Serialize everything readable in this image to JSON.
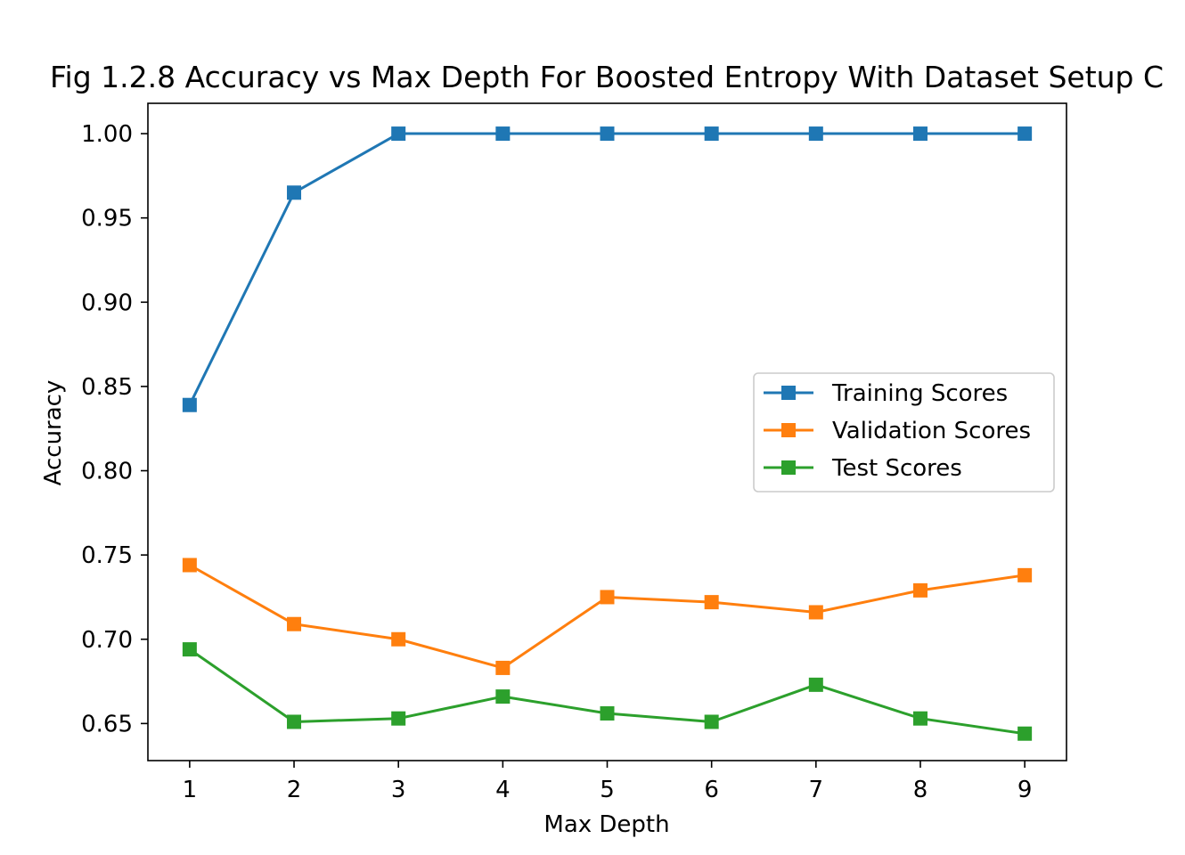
{
  "chart_data": {
    "type": "line",
    "title": "Fig 1.2.8 Accuracy vs Max Depth For Boosted Entropy With Dataset Setup C",
    "xlabel": "Max Depth",
    "ylabel": "Accuracy",
    "x": [
      1,
      2,
      3,
      4,
      5,
      6,
      7,
      8,
      9
    ],
    "xticks": [
      "1",
      "2",
      "3",
      "4",
      "5",
      "6",
      "7",
      "8",
      "9"
    ],
    "yticks": [
      "0.65",
      "0.70",
      "0.75",
      "0.80",
      "0.85",
      "0.90",
      "0.95",
      "1.00"
    ],
    "xlim": [
      0.6,
      9.4
    ],
    "ylim": [
      0.628,
      1.018
    ],
    "grid": false,
    "legend_position": "center-right",
    "marker": "square",
    "series": [
      {
        "name": "Training Scores",
        "color": "#1f77b4",
        "values": [
          0.839,
          0.965,
          1.0,
          1.0,
          1.0,
          1.0,
          1.0,
          1.0,
          1.0
        ]
      },
      {
        "name": "Validation Scores",
        "color": "#ff7f0e",
        "values": [
          0.744,
          0.709,
          0.7,
          0.683,
          0.725,
          0.722,
          0.716,
          0.729,
          0.738
        ]
      },
      {
        "name": "Test Scores",
        "color": "#2ca02c",
        "values": [
          0.694,
          0.651,
          0.653,
          0.666,
          0.656,
          0.651,
          0.673,
          0.653,
          0.644
        ]
      }
    ]
  }
}
